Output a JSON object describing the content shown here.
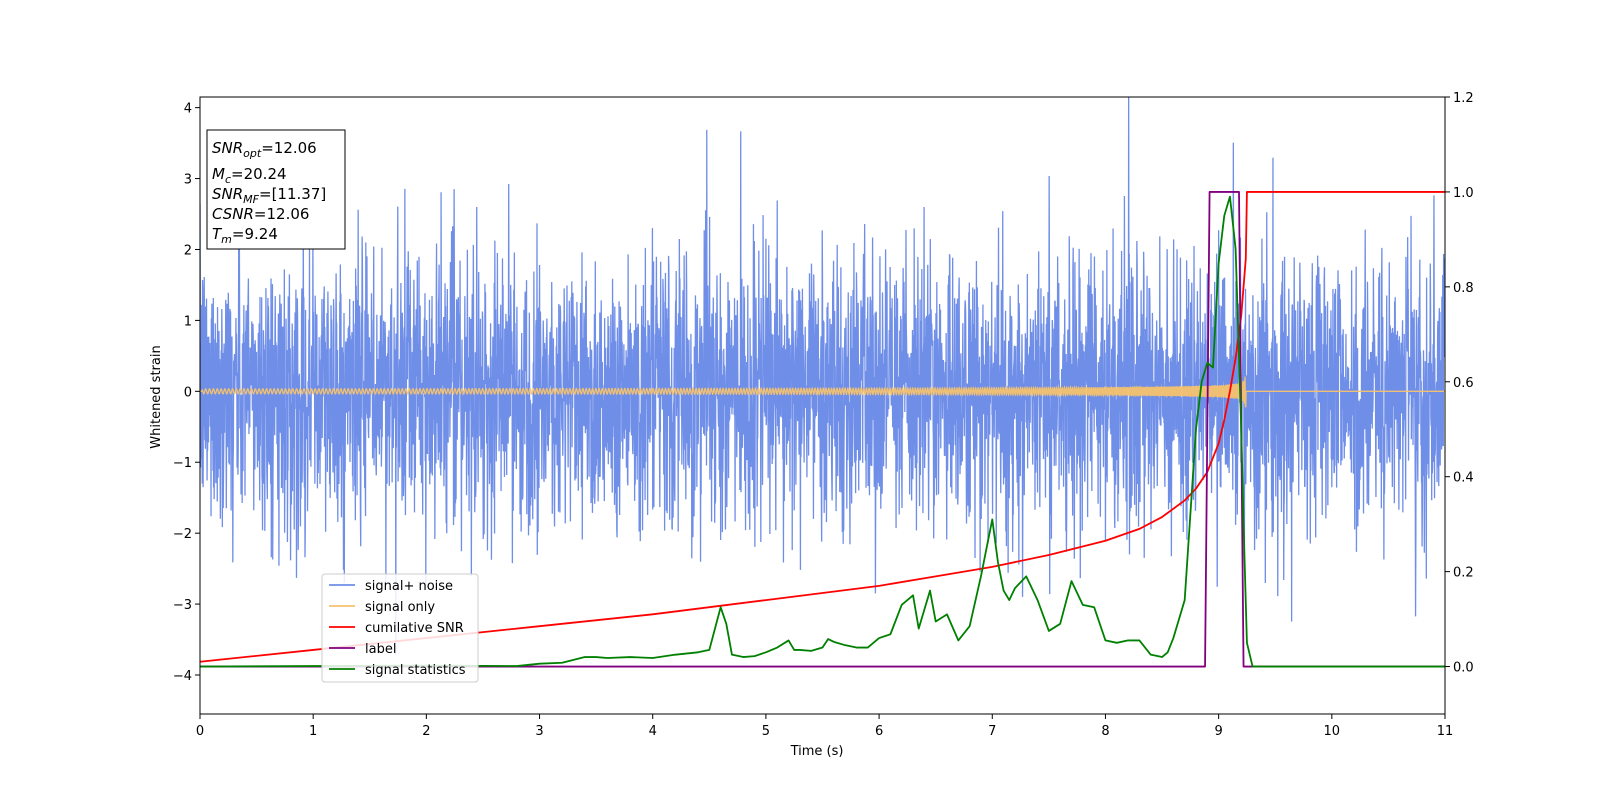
{
  "chart_data": {
    "type": "line",
    "xlabel": "Time (s)",
    "ylabel": "Whitened strain",
    "xlim": [
      0,
      11
    ],
    "ylim": [
      -4.55,
      4.15
    ],
    "y2lim": [
      -0.1,
      1.2
    ],
    "xticks": [
      "0",
      "1",
      "2",
      "3",
      "4",
      "5",
      "6",
      "7",
      "8",
      "9",
      "10",
      "11"
    ],
    "yticks": [
      "−4",
      "−3",
      "−2",
      "−1",
      "0",
      "1",
      "2",
      "3",
      "4"
    ],
    "y2ticks": [
      "0.0",
      "0.2",
      "0.4",
      "0.6",
      "0.8",
      "1.0",
      "1.2"
    ],
    "legend_position": "lower-left",
    "grid": false,
    "info_box": [
      {
        "sym": "SNR",
        "sub": "opt",
        "val": "=12.06"
      },
      {
        "sym": "M",
        "sub": "c",
        "val": "=20.24"
      },
      {
        "sym": "SNR",
        "sub": "MF",
        "val": "=[11.37]"
      },
      {
        "sym": "CSNR",
        "sub": "",
        "val": "=12.06"
      },
      {
        "sym": "T",
        "sub": "m",
        "val": "=9.24"
      }
    ],
    "series": [
      {
        "name": "signal+ noise",
        "color": "#6f8ee8",
        "axis": "left",
        "kind": "noise",
        "noise_std": 0.95
      },
      {
        "name": "signal only",
        "color": "#f5c36e",
        "axis": "left",
        "kind": "chirp",
        "merger_time": 9.24
      },
      {
        "name": "cumilative SNR",
        "color": "#ff0000",
        "axis": "right",
        "x": [
          0,
          1,
          2,
          3,
          4,
          5,
          6,
          6.5,
          7,
          7.5,
          8,
          8.3,
          8.5,
          8.7,
          8.8,
          8.9,
          9.0,
          9.05,
          9.1,
          9.15,
          9.2,
          9.24,
          9.25,
          11
        ],
        "y": [
          0.01,
          0.035,
          0.06,
          0.085,
          0.11,
          0.14,
          0.17,
          0.19,
          0.21,
          0.235,
          0.265,
          0.29,
          0.315,
          0.35,
          0.375,
          0.41,
          0.47,
          0.52,
          0.58,
          0.65,
          0.74,
          0.86,
          1.0,
          1.0
        ]
      },
      {
        "name": "label",
        "color": "#800080",
        "axis": "right",
        "x": [
          0,
          8.88,
          8.92,
          9.18,
          9.22,
          11
        ],
        "y": [
          0,
          0,
          1,
          1,
          0,
          0
        ]
      },
      {
        "name": "signal statistics",
        "color": "#008000",
        "axis": "right",
        "x": [
          0,
          1,
          2,
          2.8,
          3.0,
          3.2,
          3.4,
          3.5,
          3.6,
          3.8,
          4.0,
          4.2,
          4.4,
          4.5,
          4.6,
          4.65,
          4.7,
          4.8,
          4.9,
          5.0,
          5.1,
          5.2,
          5.25,
          5.3,
          5.4,
          5.5,
          5.55,
          5.6,
          5.7,
          5.8,
          5.9,
          6.0,
          6.1,
          6.2,
          6.3,
          6.35,
          6.45,
          6.5,
          6.6,
          6.7,
          6.8,
          6.9,
          7.0,
          7.05,
          7.1,
          7.15,
          7.2,
          7.3,
          7.4,
          7.5,
          7.6,
          7.7,
          7.8,
          7.9,
          8.0,
          8.1,
          8.2,
          8.3,
          8.4,
          8.5,
          8.55,
          8.6,
          8.7,
          8.8,
          8.85,
          8.9,
          8.95,
          9.0,
          9.05,
          9.1,
          9.15,
          9.2,
          9.22,
          9.25,
          9.3,
          11
        ],
        "y": [
          0,
          0.001,
          0.002,
          0.001,
          0.006,
          0.008,
          0.02,
          0.02,
          0.018,
          0.02,
          0.018,
          0.025,
          0.03,
          0.035,
          0.125,
          0.09,
          0.025,
          0.02,
          0.022,
          0.03,
          0.04,
          0.055,
          0.035,
          0.035,
          0.033,
          0.04,
          0.058,
          0.052,
          0.045,
          0.04,
          0.04,
          0.06,
          0.068,
          0.13,
          0.15,
          0.08,
          0.16,
          0.095,
          0.11,
          0.055,
          0.085,
          0.19,
          0.31,
          0.22,
          0.16,
          0.14,
          0.165,
          0.19,
          0.14,
          0.075,
          0.09,
          0.18,
          0.13,
          0.125,
          0.055,
          0.05,
          0.055,
          0.055,
          0.025,
          0.02,
          0.03,
          0.06,
          0.14,
          0.5,
          0.6,
          0.64,
          0.63,
          0.85,
          0.95,
          0.99,
          0.88,
          0.5,
          0.3,
          0.05,
          0.0,
          0.0
        ]
      }
    ]
  }
}
